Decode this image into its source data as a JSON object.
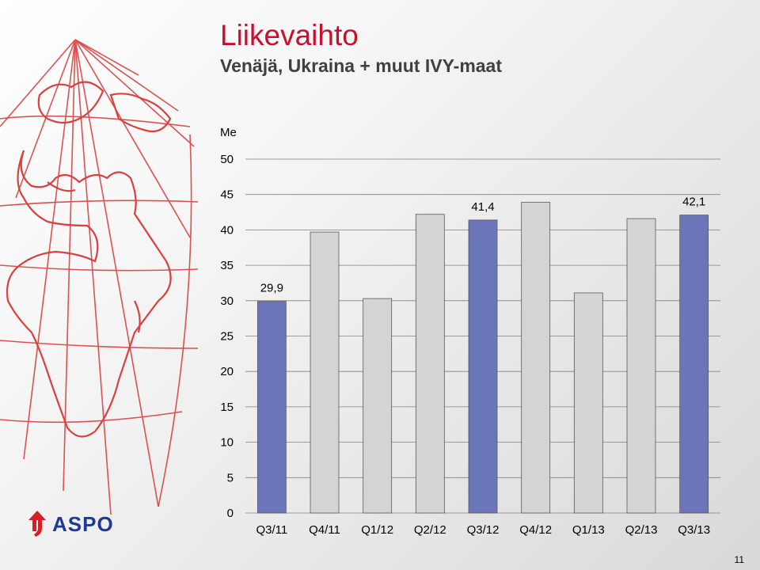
{
  "slide": {
    "title": "Liikevaihto",
    "subtitle": "Venäjä, Ukraina + muut IVY-maat",
    "logo_text": "ASPO",
    "page_number": "11"
  },
  "chart_data": {
    "type": "bar",
    "ylabel": "Me",
    "ylim": [
      0,
      50
    ],
    "yticks": [
      0,
      5,
      10,
      15,
      20,
      25,
      30,
      35,
      40,
      45,
      50
    ],
    "gridlines": true,
    "categories": [
      "Q3/11",
      "Q4/11",
      "Q1/12",
      "Q2/12",
      "Q3/12",
      "Q4/12",
      "Q1/13",
      "Q2/13",
      "Q3/13"
    ],
    "values": [
      29.9,
      39.7,
      30.3,
      42.2,
      41.4,
      43.9,
      31.1,
      41.6,
      42.1
    ],
    "highlighted": [
      true,
      false,
      false,
      false,
      true,
      false,
      false,
      false,
      true
    ],
    "data_labels": [
      "29,9",
      "",
      "",
      "",
      "41,4",
      "",
      "",
      "",
      "42,1"
    ],
    "colors": {
      "highlight": "#6a76b8",
      "normal": "#d3d4d6",
      "bar_border": "#5a5a5a",
      "grid": "#808080",
      "title": "#c8102e",
      "map_lines": "#d94040",
      "logo": "#1f3a93"
    }
  }
}
